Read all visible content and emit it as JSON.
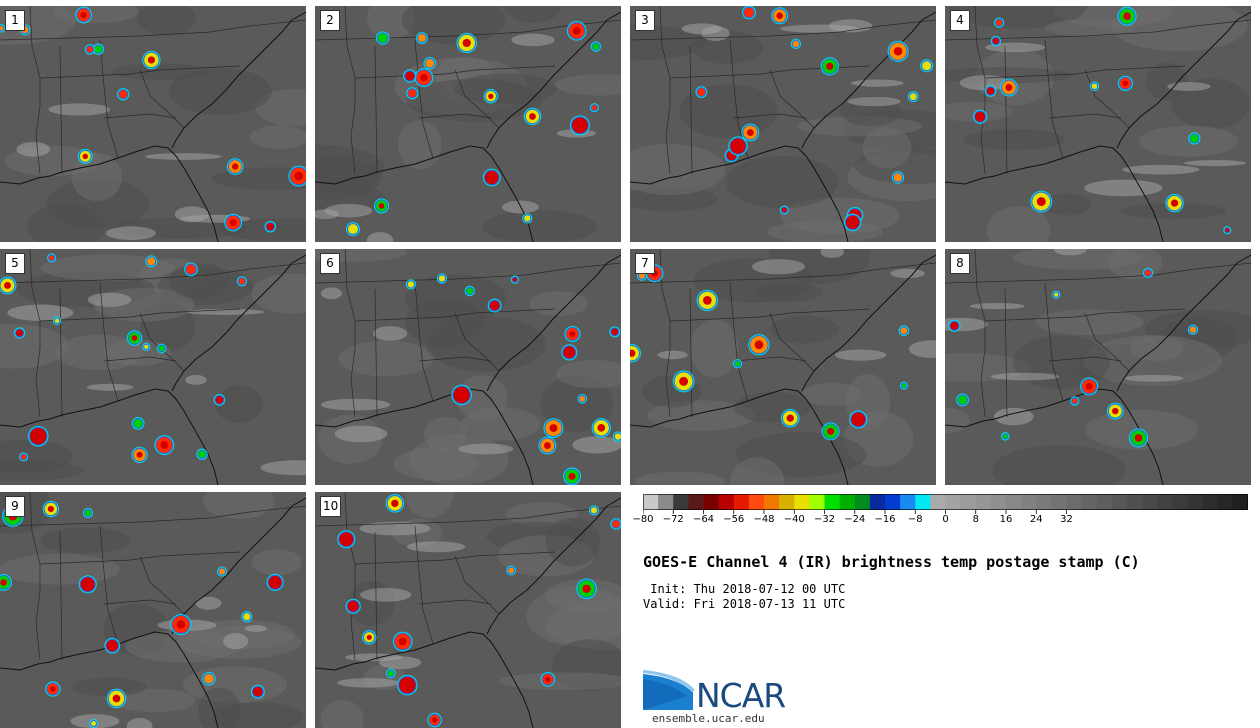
{
  "title": "GOES-E Channel 4 (IR) brightness temp postage stamp (C)",
  "init": " Init: Thu 2018-07-12 00 UTC",
  "valid": "Valid: Fri 2018-07-13 11 UTC",
  "logo": {
    "text": "NCAR",
    "url": "ensemble.ucar.edu"
  },
  "colorbar": {
    "ticks": [
      "-80",
      "-72",
      "-64",
      "-56",
      "-48",
      "-40",
      "-32",
      "-24",
      "-16",
      "-8",
      "0",
      "8",
      "16",
      "24",
      "32"
    ],
    "colors": [
      "#c9c9c9",
      "#8a8a8a",
      "#3a3a3a",
      "#5a1a1a",
      "#7a0000",
      "#b80000",
      "#e51b00",
      "#ff4a10",
      "#f07800",
      "#d8b000",
      "#e8e000",
      "#a0ff00",
      "#00e000",
      "#00b000",
      "#008a20",
      "#0a2aa0",
      "#003cd0",
      "#1a8af0",
      "#00e8f0",
      "#aaaaaa",
      "#a3a3a3",
      "#9c9c9c",
      "#969696",
      "#8f8f8f",
      "#888888",
      "#818181",
      "#7a7a7a",
      "#737373",
      "#6c6c6c",
      "#656565",
      "#5e5e5e",
      "#575757",
      "#505050",
      "#494949",
      "#424242",
      "#3b3b3b",
      "#343434",
      "#2d2d2d",
      "#262626",
      "#202020"
    ]
  },
  "panels": [
    {
      "label": "1"
    },
    {
      "label": "2"
    },
    {
      "label": "3"
    },
    {
      "label": "4"
    },
    {
      "label": "5"
    },
    {
      "label": "6"
    },
    {
      "label": "7"
    },
    {
      "label": "8"
    },
    {
      "label": "9"
    },
    {
      "label": "10"
    }
  ]
}
